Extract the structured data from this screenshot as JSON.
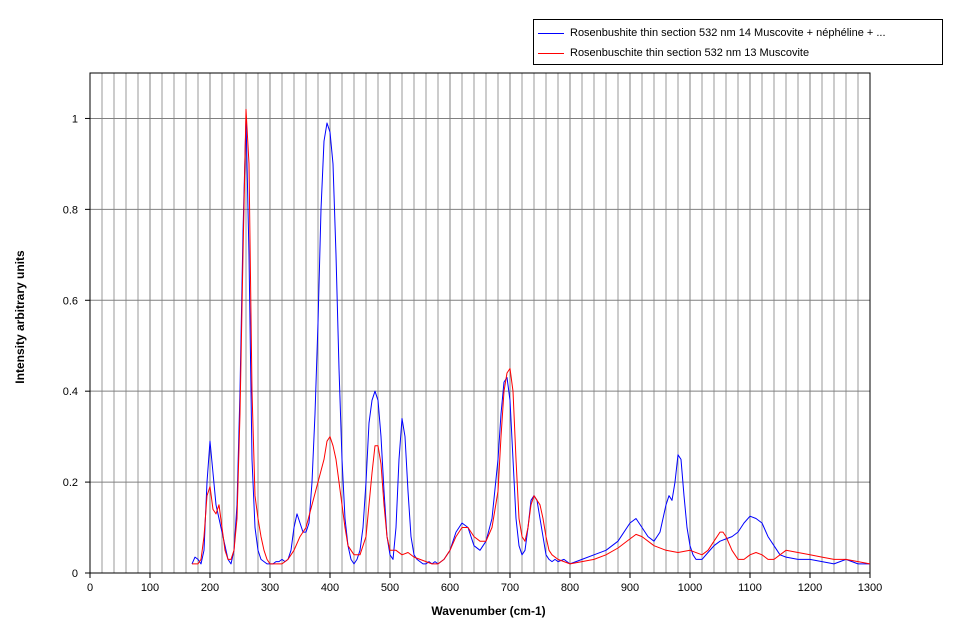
{
  "chart_data": {
    "type": "line",
    "title": "",
    "xlabel": "Wavenumber (cm-1)",
    "ylabel": "Intensity  arbitrary units",
    "xlim": [
      0,
      1300
    ],
    "ylim": [
      0,
      1.1
    ],
    "xticks": [
      0,
      100,
      200,
      300,
      400,
      500,
      600,
      700,
      800,
      900,
      1000,
      1100,
      1200,
      1300
    ],
    "yticks": [
      0,
      0.2,
      0.4,
      0.6,
      0.8,
      1
    ],
    "ytick_labels": [
      "0",
      "0.2",
      "0.4",
      "0.6",
      "0.8",
      "1"
    ],
    "grid": true,
    "legend_position": "top-right",
    "series": [
      {
        "name": "Rosenbushite thin section  532 nm 14 Muscovite  + néphéline + ...",
        "color": "#0000ff",
        "x": [
          170,
          175,
          180,
          185,
          190,
          195,
          200,
          205,
          210,
          215,
          220,
          225,
          230,
          235,
          240,
          245,
          250,
          255,
          260,
          265,
          270,
          275,
          280,
          285,
          290,
          295,
          300,
          305,
          310,
          315,
          320,
          325,
          330,
          335,
          340,
          345,
          350,
          355,
          360,
          365,
          370,
          375,
          380,
          385,
          390,
          395,
          400,
          405,
          410,
          415,
          420,
          425,
          430,
          435,
          440,
          445,
          450,
          455,
          460,
          465,
          470,
          475,
          480,
          485,
          490,
          495,
          500,
          505,
          510,
          515,
          520,
          525,
          530,
          535,
          540,
          545,
          550,
          555,
          560,
          565,
          570,
          575,
          580,
          590,
          600,
          610,
          620,
          630,
          640,
          650,
          660,
          670,
          680,
          685,
          690,
          695,
          700,
          705,
          710,
          715,
          720,
          725,
          730,
          735,
          740,
          745,
          750,
          755,
          760,
          765,
          770,
          775,
          780,
          790,
          800,
          820,
          840,
          860,
          880,
          900,
          910,
          920,
          930,
          940,
          950,
          960,
          965,
          970,
          975,
          980,
          985,
          990,
          995,
          1000,
          1005,
          1010,
          1020,
          1030,
          1040,
          1050,
          1060,
          1070,
          1080,
          1090,
          1100,
          1110,
          1120,
          1130,
          1140,
          1150,
          1160,
          1180,
          1200,
          1220,
          1240,
          1260,
          1280,
          1300
        ],
        "y": [
          0.02,
          0.035,
          0.03,
          0.02,
          0.05,
          0.2,
          0.29,
          0.22,
          0.15,
          0.12,
          0.09,
          0.06,
          0.03,
          0.02,
          0.05,
          0.15,
          0.4,
          0.75,
          1.0,
          0.7,
          0.25,
          0.1,
          0.05,
          0.03,
          0.025,
          0.02,
          0.02,
          0.02,
          0.025,
          0.025,
          0.03,
          0.025,
          0.03,
          0.05,
          0.1,
          0.13,
          0.11,
          0.09,
          0.09,
          0.11,
          0.2,
          0.35,
          0.55,
          0.8,
          0.95,
          0.99,
          0.97,
          0.9,
          0.7,
          0.45,
          0.25,
          0.12,
          0.06,
          0.03,
          0.02,
          0.03,
          0.05,
          0.1,
          0.2,
          0.33,
          0.38,
          0.4,
          0.38,
          0.3,
          0.18,
          0.08,
          0.04,
          0.03,
          0.1,
          0.25,
          0.34,
          0.3,
          0.18,
          0.08,
          0.04,
          0.03,
          0.025,
          0.02,
          0.02,
          0.025,
          0.02,
          0.025,
          0.02,
          0.03,
          0.05,
          0.09,
          0.11,
          0.1,
          0.06,
          0.05,
          0.07,
          0.12,
          0.25,
          0.35,
          0.42,
          0.43,
          0.38,
          0.25,
          0.12,
          0.06,
          0.04,
          0.05,
          0.1,
          0.16,
          0.17,
          0.16,
          0.12,
          0.08,
          0.04,
          0.03,
          0.025,
          0.03,
          0.025,
          0.03,
          0.02,
          0.03,
          0.04,
          0.05,
          0.07,
          0.11,
          0.12,
          0.1,
          0.08,
          0.07,
          0.09,
          0.15,
          0.17,
          0.16,
          0.2,
          0.26,
          0.25,
          0.17,
          0.1,
          0.06,
          0.04,
          0.03,
          0.03,
          0.045,
          0.06,
          0.07,
          0.075,
          0.08,
          0.09,
          0.11,
          0.125,
          0.12,
          0.11,
          0.08,
          0.06,
          0.04,
          0.035,
          0.03,
          0.03,
          0.025,
          0.02,
          0.03,
          0.02,
          0.02
        ]
      },
      {
        "name": "Rosenbuschite thin section  532 nm 13 Muscovite",
        "color": "#ff0000",
        "x": [
          170,
          175,
          180,
          185,
          190,
          195,
          200,
          205,
          210,
          215,
          220,
          225,
          230,
          235,
          240,
          245,
          250,
          255,
          260,
          265,
          270,
          275,
          280,
          285,
          290,
          295,
          300,
          310,
          320,
          330,
          340,
          350,
          360,
          370,
          380,
          390,
          395,
          400,
          405,
          410,
          415,
          420,
          425,
          430,
          440,
          450,
          460,
          465,
          470,
          475,
          480,
          485,
          490,
          495,
          500,
          510,
          520,
          530,
          540,
          550,
          560,
          570,
          580,
          590,
          600,
          610,
          620,
          630,
          640,
          650,
          660,
          670,
          680,
          685,
          690,
          695,
          700,
          705,
          710,
          715,
          720,
          725,
          730,
          735,
          740,
          745,
          750,
          755,
          760,
          765,
          770,
          780,
          790,
          800,
          820,
          840,
          860,
          880,
          900,
          910,
          920,
          940,
          960,
          980,
          1000,
          1020,
          1030,
          1040,
          1050,
          1055,
          1060,
          1070,
          1080,
          1090,
          1100,
          1110,
          1120,
          1130,
          1140,
          1160,
          1180,
          1200,
          1220,
          1240,
          1260,
          1280,
          1300
        ],
        "y": [
          0.02,
          0.02,
          0.02,
          0.03,
          0.08,
          0.17,
          0.19,
          0.14,
          0.13,
          0.15,
          0.1,
          0.05,
          0.03,
          0.03,
          0.05,
          0.12,
          0.35,
          0.7,
          1.02,
          0.9,
          0.4,
          0.17,
          0.12,
          0.08,
          0.05,
          0.03,
          0.02,
          0.02,
          0.02,
          0.03,
          0.05,
          0.08,
          0.1,
          0.15,
          0.2,
          0.25,
          0.29,
          0.3,
          0.28,
          0.25,
          0.2,
          0.15,
          0.1,
          0.06,
          0.04,
          0.04,
          0.08,
          0.15,
          0.22,
          0.28,
          0.28,
          0.24,
          0.15,
          0.08,
          0.05,
          0.05,
          0.04,
          0.045,
          0.035,
          0.03,
          0.025,
          0.02,
          0.02,
          0.03,
          0.05,
          0.08,
          0.1,
          0.1,
          0.08,
          0.07,
          0.07,
          0.1,
          0.18,
          0.3,
          0.4,
          0.44,
          0.45,
          0.4,
          0.25,
          0.12,
          0.08,
          0.07,
          0.1,
          0.15,
          0.17,
          0.16,
          0.15,
          0.12,
          0.08,
          0.05,
          0.04,
          0.03,
          0.025,
          0.02,
          0.025,
          0.03,
          0.04,
          0.055,
          0.075,
          0.085,
          0.08,
          0.06,
          0.05,
          0.045,
          0.05,
          0.04,
          0.05,
          0.07,
          0.09,
          0.09,
          0.08,
          0.05,
          0.03,
          0.03,
          0.04,
          0.045,
          0.04,
          0.03,
          0.03,
          0.05,
          0.045,
          0.04,
          0.035,
          0.03,
          0.03,
          0.025,
          0.02
        ]
      }
    ]
  }
}
